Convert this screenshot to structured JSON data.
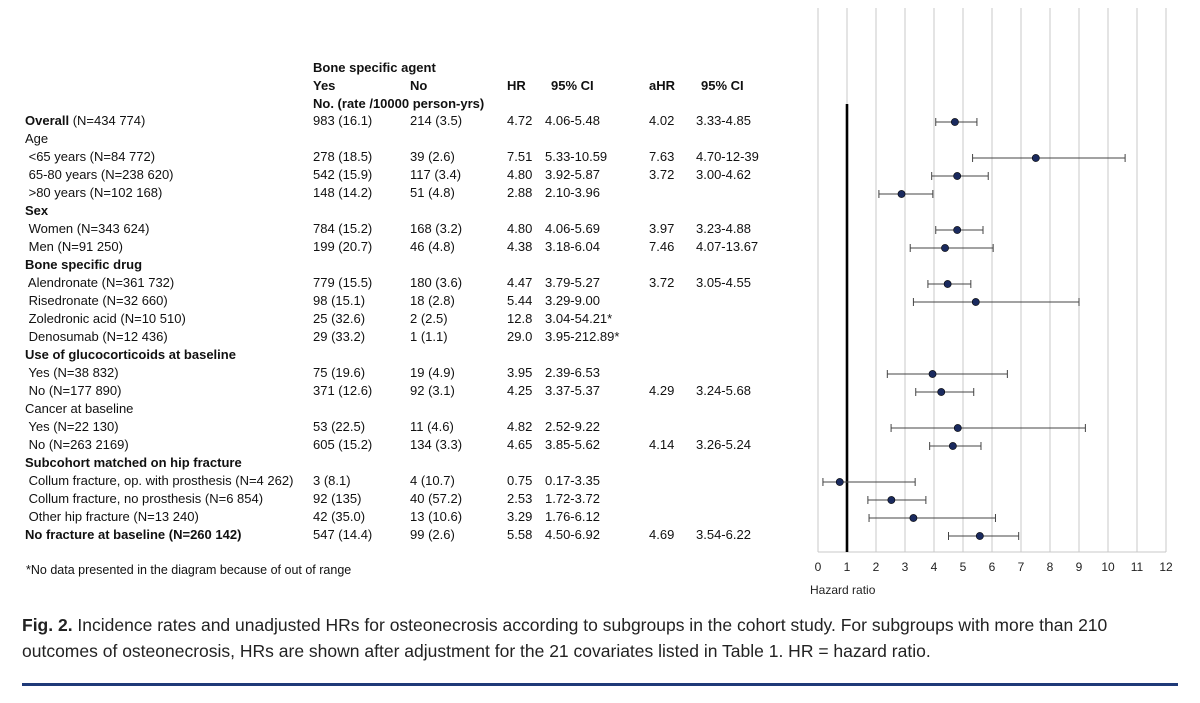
{
  "header": {
    "group_title": "Bone specific agent",
    "col_yes": "Yes",
    "col_no": "No",
    "col_hr": "HR",
    "col_ci": "95% CI",
    "col_ahr": "aHR",
    "col_aci": "95% CI",
    "sub_label": "No. (rate /10000 person-yrs)"
  },
  "rows": [
    {
      "label": "Overall",
      "label_extra": " (N=434 774)",
      "bold": true,
      "yes": "983 (16.1)",
      "no": "214 (3.5)",
      "hr": "4.72",
      "ci": "4.06-5.48",
      "ahr": "4.02",
      "aci": "3.33-4.85"
    },
    {
      "label": "Age",
      "bold": false,
      "heading": true
    },
    {
      "label": " <65 years (N=84 772)",
      "yes": "278 (18.5)",
      "no": "39 (2.6)",
      "hr": "7.51",
      "ci": "5.33-10.59",
      "ahr": "7.63",
      "aci": "4.70-12-39"
    },
    {
      "label": " 65-80 years (N=238 620)",
      "yes": "542 (15.9)",
      "no": "117 (3.4)",
      "hr": "4.80",
      "ci": "3.92-5.87",
      "ahr": "3.72",
      "aci": "3.00-4.62"
    },
    {
      "label": " >80 years (N=102 168)",
      "yes": "148 (14.2)",
      "no": "51 (4.8)",
      "hr": "2.88",
      "ci": "2.10-3.96"
    },
    {
      "label": "Sex",
      "bold": true,
      "heading": true
    },
    {
      "label": " Women (N=343 624)",
      "yes": "784 (15.2)",
      "no": "168 (3.2)",
      "hr": "4.80",
      "ci": "4.06-5.69",
      "ahr": "3.97",
      "aci": "3.23-4.88"
    },
    {
      "label": " Men (N=91 250)",
      "yes": "199 (20.7)",
      "no": "46 (4.8)",
      "hr": "4.38",
      "ci": "3.18-6.04",
      "ahr": "7.46",
      "aci": "4.07-13.67"
    },
    {
      "label": "Bone specific drug",
      "bold": true,
      "heading": true
    },
    {
      "label": " Alendronate (N=361 732)",
      "yes": "779 (15.5)",
      "no": "180 (3.6)",
      "hr": "4.47",
      "ci": "3.79-5.27",
      "ahr": "3.72",
      "aci": "3.05-4.55"
    },
    {
      "label": " Risedronate (N=32 660)",
      "yes": "98 (15.1)",
      "no": "18 (2.8)",
      "hr": "5.44",
      "ci": "3.29-9.00"
    },
    {
      "label": " Zoledronic acid (N=10 510)",
      "yes": "25 (32.6)",
      "no": "2 (2.5)",
      "hr": "12.8",
      "ci": "3.04-54.21*"
    },
    {
      "label": " Denosumab (N=12 436)",
      "yes": "29 (33.2)",
      "no": "1 (1.1)",
      "hr": "29.0",
      "ci": "3.95-212.89*"
    },
    {
      "label": "Use of glucocorticoids at baseline",
      "bold": true,
      "heading": true
    },
    {
      "label": " Yes (N=38 832)",
      "yes": "75 (19.6)",
      "no": "19 (4.9)",
      "hr": "3.95",
      "ci": "2.39-6.53"
    },
    {
      "label": " No (N=177 890)",
      "yes": "371 (12.6)",
      "no": "92 (3.1)",
      "hr": "4.25",
      "ci": "3.37-5.37",
      "ahr": "4.29",
      "aci": "3.24-5.68"
    },
    {
      "label": "Cancer at baseline",
      "bold": false,
      "heading": true
    },
    {
      "label": " Yes (N=22 130)",
      "yes": "53 (22.5)",
      "no": "11 (4.6)",
      "hr": "4.82",
      "ci": "2.52-9.22"
    },
    {
      "label": " No (N=263 2169)",
      "yes": "605 (15.2)",
      "no": "134 (3.3)",
      "hr": "4.65",
      "ci": "3.85-5.62",
      "ahr": "4.14",
      "aci": "3.26-5.24"
    },
    {
      "label": "Subcohort matched on hip fracture",
      "bold": true,
      "heading": true
    },
    {
      "label": " Collum fracture, op. with prosthesis (N=4 262)",
      "yes": "3 (8.1)",
      "no": "4 (10.7)",
      "hr": "0.75",
      "ci": "0.17-3.35"
    },
    {
      "label": " Collum fracture, no prosthesis (N=6 854)",
      "yes": "92 (135)",
      "no": "40 (57.2)",
      "hr": "2.53",
      "ci": "1.72-3.72"
    },
    {
      "label": " Other hip fracture (N=13 240)",
      "yes": "42 (35.0)",
      "no": "13 (10.6)",
      "hr": "3.29",
      "ci": "1.76-6.12"
    },
    {
      "label": "No fracture at baseline (N=260 142)",
      "bold": true,
      "yes": "547 (14.4)",
      "no": "99 (2.6)",
      "hr": "5.58",
      "ci": "4.50-6.92",
      "ahr": "4.69",
      "aci": "3.54-6.22"
    }
  ],
  "footnote": "*No data presented in the diagram because of out of range",
  "caption": {
    "label": "Fig. 2.",
    "text": " Incidence rates and unadjusted HRs for osteonecrosis according to subgroups in the cohort study. For subgroups with more than 210 outcomes of osteonecrosis, HRs are shown after adjustment for the 21 covariates listed in Table 1. HR = hazard ratio."
  },
  "chart_data": {
    "type": "forest",
    "xlabel": "Hazard ratio",
    "xlim": [
      0,
      12
    ],
    "x_ticks": [
      0,
      1,
      2,
      3,
      4,
      5,
      6,
      7,
      8,
      9,
      10,
      11,
      12
    ],
    "reference_line": 1,
    "grid": "vertical",
    "marker_color": "#1a2a5e",
    "points": [
      {
        "row": 0,
        "est": 4.72,
        "lo": 4.06,
        "hi": 5.48
      },
      {
        "row": 2,
        "est": 7.51,
        "lo": 5.33,
        "hi": 10.59
      },
      {
        "row": 3,
        "est": 4.8,
        "lo": 3.92,
        "hi": 5.87
      },
      {
        "row": 4,
        "est": 2.88,
        "lo": 2.1,
        "hi": 3.96
      },
      {
        "row": 6,
        "est": 4.8,
        "lo": 4.06,
        "hi": 5.69
      },
      {
        "row": 7,
        "est": 4.38,
        "lo": 3.18,
        "hi": 6.04
      },
      {
        "row": 9,
        "est": 4.47,
        "lo": 3.79,
        "hi": 5.27
      },
      {
        "row": 10,
        "est": 5.44,
        "lo": 3.29,
        "hi": 9.0
      },
      {
        "row": 14,
        "est": 3.95,
        "lo": 2.39,
        "hi": 6.53
      },
      {
        "row": 15,
        "est": 4.25,
        "lo": 3.37,
        "hi": 5.37
      },
      {
        "row": 17,
        "est": 4.82,
        "lo": 2.52,
        "hi": 9.22
      },
      {
        "row": 18,
        "est": 4.65,
        "lo": 3.85,
        "hi": 5.62
      },
      {
        "row": 20,
        "est": 0.75,
        "lo": 0.17,
        "hi": 3.35
      },
      {
        "row": 21,
        "est": 2.53,
        "lo": 1.72,
        "hi": 3.72
      },
      {
        "row": 22,
        "est": 3.29,
        "lo": 1.76,
        "hi": 6.12
      },
      {
        "row": 23,
        "est": 5.58,
        "lo": 4.5,
        "hi": 6.92
      }
    ]
  }
}
